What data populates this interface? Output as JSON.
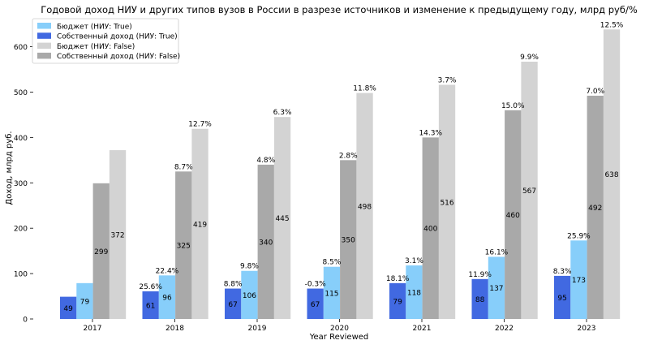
{
  "chart_data": {
    "type": "bar",
    "title": "Годовой доход НИУ и других типов вузов в России в разрезе источников и изменение к предыдущему году, млрд руб/%",
    "xlabel": "Year Reviewed",
    "ylabel": "Доход, млрд руб.",
    "ylim": [
      0,
      660
    ],
    "yticks": [
      0,
      100,
      200,
      300,
      400,
      500,
      600
    ],
    "grid": false,
    "legend_position": "top-left",
    "categories": [
      "2017",
      "2018",
      "2019",
      "2020",
      "2021",
      "2022",
      "2023"
    ],
    "series": [
      {
        "name": "Бюджет (НИУ: True)",
        "color": "#87cefa",
        "values": [
          79,
          96,
          106,
          115,
          118,
          137,
          173
        ],
        "labels": [
          "79",
          "96",
          "106",
          "115",
          "118",
          "137",
          "173"
        ],
        "pct": [
          "",
          "22.4%",
          "9.8%",
          "8.5%",
          "3.1%",
          "16.1%",
          "25.9%"
        ]
      },
      {
        "name": "Собственный доход (НИУ: True)",
        "color": "#4169e1",
        "values": [
          49,
          61,
          67,
          67,
          79,
          88,
          95
        ],
        "labels": [
          "49",
          "61",
          "67",
          "67",
          "79",
          "88",
          "95"
        ],
        "pct": [
          "",
          "25.6%",
          "8.8%",
          "-0.3%",
          "18.1%",
          "11.9%",
          "8.3%"
        ]
      },
      {
        "name": "Бюджет (НИУ: False)",
        "color": "#d3d3d3",
        "values": [
          372,
          419,
          445,
          498,
          516,
          567,
          638
        ],
        "labels": [
          "372",
          "419",
          "445",
          "498",
          "516",
          "567",
          "638"
        ],
        "pct": [
          "",
          "12.7%",
          "6.3%",
          "11.8%",
          "3.7%",
          "9.9%",
          "12.5%"
        ]
      },
      {
        "name": "Собственный доход (НИУ: False)",
        "color": "#a9a9a9",
        "values": [
          299,
          325,
          340,
          350,
          400,
          460,
          492
        ],
        "labels": [
          "299",
          "325",
          "340",
          "350",
          "400",
          "460",
          "492"
        ],
        "pct": [
          "",
          "8.7%",
          "4.8%",
          "2.8%",
          "14.3%",
          "15.0%",
          "7.0%"
        ]
      }
    ]
  }
}
